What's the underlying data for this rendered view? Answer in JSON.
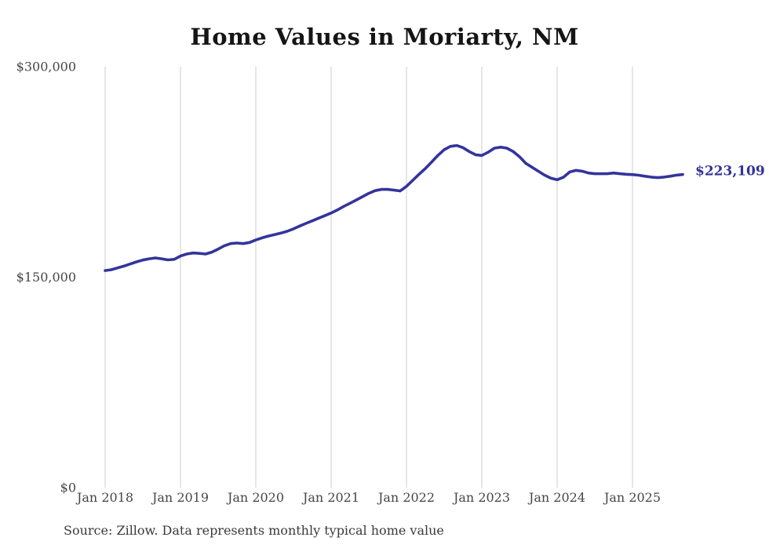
{
  "title": "Home Values in Moriarty, NM",
  "source_note": "Source: Zillow. Data represents monthly typical home value",
  "colors": {
    "line": "#34349c",
    "grid": "#cccccc",
    "axis_text": "#464646",
    "title_text": "#151515",
    "source_text": "#3a3a3a",
    "end_label_text": "#32329b",
    "background": "#ffffff"
  },
  "chart_data": {
    "type": "line",
    "title": "Home Values in Moriarty, NM",
    "xlabel": "",
    "ylabel": "",
    "ylim": [
      0,
      300000
    ],
    "y_ticks": [
      {
        "value": 0,
        "label": "$0"
      },
      {
        "value": 150000,
        "label": "$150,000"
      },
      {
        "value": 300000,
        "label": "$300,000"
      }
    ],
    "x_ticks": [
      "Jan 2018",
      "Jan 2019",
      "Jan 2020",
      "Jan 2021",
      "Jan 2022",
      "Jan 2023",
      "Jan 2024",
      "Jan 2025"
    ],
    "grid": "vertical-only",
    "legend": "none",
    "series": [
      {
        "name": "Typical home value",
        "start_month": "Jan 2018",
        "end_month": "Sep 2025",
        "frequency": "monthly",
        "values": [
          154700,
          155300,
          156600,
          157900,
          159400,
          160900,
          162200,
          163100,
          163700,
          163100,
          162300,
          162700,
          165000,
          166500,
          167200,
          166900,
          166500,
          167800,
          170000,
          172400,
          173900,
          174300,
          173900,
          174700,
          176500,
          178000,
          179300,
          180300,
          181400,
          182700,
          184400,
          186400,
          188300,
          190100,
          192000,
          193800,
          195700,
          197900,
          200400,
          202600,
          205000,
          207300,
          209700,
          211600,
          212500,
          212500,
          212000,
          211400,
          214700,
          219000,
          223300,
          227400,
          232000,
          236700,
          240800,
          243200,
          243800,
          242300,
          239500,
          237200,
          236700,
          239000,
          241900,
          242600,
          241900,
          239500,
          235800,
          231100,
          228300,
          225500,
          222700,
          220500,
          219400,
          221200,
          224900,
          226100,
          225500,
          224200,
          223700,
          223700,
          223700,
          224200,
          223700,
          223300,
          223100,
          222600,
          221900,
          221300,
          220900,
          221300,
          221900,
          222700,
          223109
        ]
      }
    ],
    "last_value": 223109,
    "last_point_label": "$223,109"
  }
}
